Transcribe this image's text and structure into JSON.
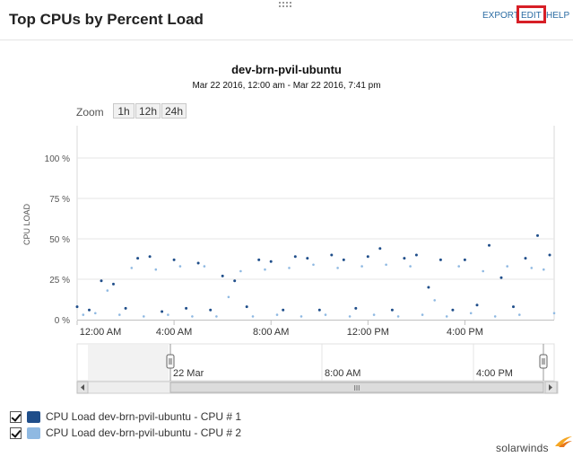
{
  "header": {
    "title": "Top CPUs by Percent Load",
    "export_label": "EXPORT",
    "edit_label": "EDIT",
    "help_label": "HELP"
  },
  "chart": {
    "title": "dev-brn-pvil-ubuntu",
    "subtitle": "Mar 22 2016, 12:00 am - Mar 22 2016, 7:41 pm",
    "zoom_label": "Zoom",
    "zoom_options": [
      "1h",
      "12h",
      "24h"
    ],
    "ylabel": "CPU LOAD",
    "y_ticks": [
      "0 %",
      "25 %",
      "50 %",
      "75 %",
      "100 %"
    ],
    "x_ticks": [
      "12:00 AM",
      "4:00 AM",
      "8:00 AM",
      "12:00 PM",
      "4:00 PM"
    ],
    "navigator_ticks": [
      "22 Mar",
      "8:00 AM",
      "4:00 PM"
    ],
    "scrollbar_grip": "III"
  },
  "chart_data": {
    "type": "scatter",
    "xlabel": "",
    "ylabel": "CPU LOAD",
    "ylim": [
      0,
      120
    ],
    "y_ticks": [
      0,
      25,
      50,
      75,
      100
    ],
    "x_range": [
      "2016-03-22 00:00",
      "2016-03-22 19:41"
    ],
    "series": [
      {
        "name": "CPU Load dev-brn-pvil-ubuntu - CPU # 1",
        "color": "#1f4e8a",
        "x": [
          "00:00",
          "00:30",
          "01:00",
          "01:30",
          "02:00",
          "02:30",
          "03:00",
          "03:30",
          "04:00",
          "04:30",
          "05:00",
          "05:30",
          "06:00",
          "06:30",
          "07:00",
          "07:30",
          "08:00",
          "08:30",
          "09:00",
          "09:30",
          "10:00",
          "10:30",
          "11:00",
          "11:30",
          "12:00",
          "12:30",
          "13:00",
          "13:30",
          "14:00",
          "14:30",
          "15:00",
          "15:30",
          "16:00",
          "16:30",
          "17:00",
          "17:30",
          "18:00",
          "18:30",
          "19:00",
          "19:30"
        ],
        "y": [
          8,
          6,
          24,
          22,
          7,
          38,
          39,
          5,
          37,
          7,
          35,
          6,
          27,
          24,
          8,
          37,
          36,
          6,
          39,
          38,
          6,
          40,
          37,
          7,
          39,
          44,
          6,
          38,
          40,
          20,
          37,
          6,
          37,
          9,
          46,
          26,
          8,
          38,
          52,
          40
        ]
      },
      {
        "name": "CPU Load dev-brn-pvil-ubuntu - CPU # 2",
        "color": "#8fb9e2",
        "x": [
          "00:15",
          "00:45",
          "01:15",
          "01:45",
          "02:15",
          "02:45",
          "03:15",
          "03:45",
          "04:15",
          "04:45",
          "05:15",
          "05:45",
          "06:15",
          "06:45",
          "07:15",
          "07:45",
          "08:15",
          "08:45",
          "09:15",
          "09:45",
          "10:15",
          "10:45",
          "11:15",
          "11:45",
          "12:15",
          "12:45",
          "13:15",
          "13:45",
          "14:15",
          "14:45",
          "15:15",
          "15:45",
          "16:15",
          "16:45",
          "17:15",
          "17:45",
          "18:15",
          "18:45",
          "19:15",
          "19:41"
        ],
        "y": [
          3,
          4,
          18,
          3,
          32,
          2,
          31,
          3,
          33,
          2,
          33,
          2,
          14,
          30,
          2,
          31,
          3,
          32,
          2,
          34,
          3,
          32,
          2,
          33,
          3,
          34,
          2,
          33,
          3,
          12,
          2,
          33,
          4,
          30,
          2,
          33,
          3,
          32,
          31,
          4
        ]
      }
    ],
    "legend": "bottom-left"
  },
  "legend": {
    "items": [
      {
        "label": "CPU Load dev-brn-pvil-ubuntu - CPU # 1",
        "color": "#1f4e8a"
      },
      {
        "label": "CPU Load dev-brn-pvil-ubuntu - CPU # 2",
        "color": "#8fb9e2"
      }
    ]
  },
  "footer": {
    "logo_text": "solarwinds"
  }
}
